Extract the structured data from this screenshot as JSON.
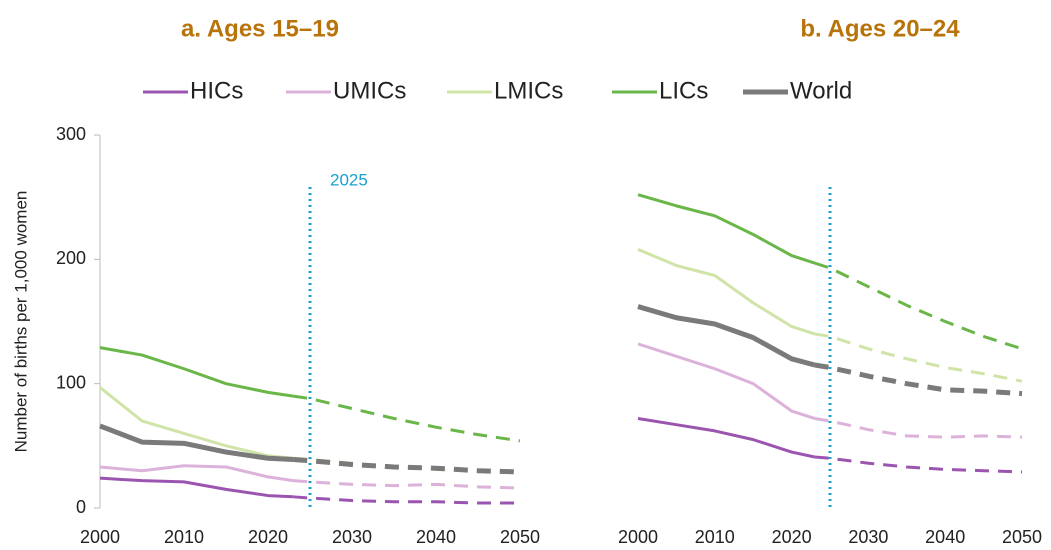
{
  "chart_data": [
    {
      "type": "line",
      "title": "a. Ages 15–19",
      "ylabel": "Number of births per 1,000 women",
      "x": [
        2000,
        2005,
        2010,
        2015,
        2020,
        2023,
        2025,
        2030,
        2035,
        2040,
        2045,
        2050
      ],
      "xlim": [
        2000,
        2050
      ],
      "xticks": [
        2000,
        2010,
        2020,
        2030,
        2040,
        2050
      ],
      "ylim": [
        0,
        300
      ],
      "yticks": [
        0,
        100,
        200,
        300
      ],
      "dashed_after": 2023,
      "vline": 2025,
      "vline_color": "#1a9fd0",
      "series": [
        {
          "name": "HICs",
          "color": "#9b55b0",
          "values": [
            24,
            22,
            21,
            15,
            10,
            9,
            8,
            6,
            5,
            5,
            4,
            4
          ]
        },
        {
          "name": "UMICs",
          "color": "#dcb2da",
          "values": [
            33,
            30,
            34,
            33,
            25,
            22,
            21,
            19,
            18,
            19,
            17,
            16
          ]
        },
        {
          "name": "LMICs",
          "color": "#d0e4a8",
          "values": [
            97,
            70,
            60,
            50,
            42,
            40,
            39,
            36,
            33,
            31,
            30,
            29
          ]
        },
        {
          "name": "LICs",
          "color": "#6ab648",
          "values": [
            129,
            123,
            112,
            100,
            93,
            90,
            88,
            80,
            72,
            65,
            59,
            54
          ]
        },
        {
          "name": "World",
          "color": "#7a7a7a",
          "values": [
            66,
            53,
            52,
            45,
            40,
            39,
            38,
            35,
            33,
            32,
            30,
            29
          ]
        }
      ]
    },
    {
      "type": "line",
      "title": "b. Ages 20–24",
      "x": [
        2000,
        2005,
        2010,
        2015,
        2020,
        2023,
        2025,
        2030,
        2035,
        2040,
        2045,
        2050
      ],
      "xlim": [
        2000,
        2050
      ],
      "xticks": [
        2000,
        2010,
        2020,
        2030,
        2040,
        2050
      ],
      "ylim": [
        0,
        300
      ],
      "dashed_after": 2023,
      "vline": 2025,
      "vline_color": "#1a9fd0",
      "series": [
        {
          "color": "#9b55b0",
          "values": [
            72,
            67,
            62,
            55,
            45,
            41,
            40,
            36,
            33,
            31,
            30,
            29
          ]
        },
        {
          "color": "#dcb2da",
          "values": [
            132,
            122,
            112,
            100,
            78,
            72,
            70,
            63,
            58,
            57,
            58,
            57
          ]
        },
        {
          "color": "#d0e4a8",
          "values": [
            208,
            195,
            187,
            165,
            146,
            140,
            138,
            128,
            120,
            113,
            108,
            102
          ]
        },
        {
          "color": "#6ab648",
          "values": [
            252,
            243,
            235,
            220,
            203,
            197,
            193,
            178,
            163,
            150,
            138,
            128
          ]
        },
        {
          "color": "#7a7a7a",
          "values": [
            162,
            153,
            148,
            137,
            120,
            115,
            113,
            106,
            100,
            95,
            94,
            92
          ]
        }
      ]
    }
  ]
}
